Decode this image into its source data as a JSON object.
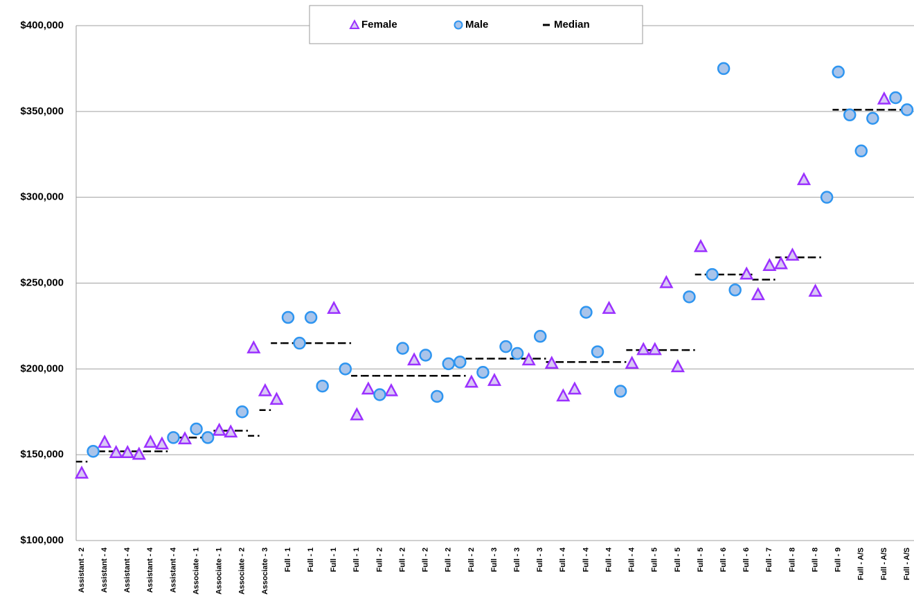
{
  "chart_data": {
    "type": "scatter",
    "categories": [
      "Assistant - 2",
      null,
      "Assistant - 4",
      null,
      "Assistant - 4",
      null,
      "Assistant - 4",
      null,
      "Assistant - 4",
      null,
      "Associate - 1",
      null,
      "Associate - 1",
      null,
      "Associate - 2",
      null,
      "Associate - 3",
      null,
      "Full - 1",
      null,
      "Full - 1",
      null,
      "Full - 1",
      null,
      "Full - 1",
      null,
      "Full - 2",
      null,
      "Full - 2",
      null,
      "Full - 2",
      null,
      "Full - 2",
      null,
      "Full - 2",
      null,
      "Full - 3",
      null,
      "Full - 3",
      null,
      "Full - 3",
      null,
      "Full - 4",
      null,
      "Full - 4",
      null,
      "Full - 4",
      null,
      "Full - 4",
      null,
      "Full - 5",
      null,
      "Full - 5",
      null,
      "Full - 5",
      null,
      "Full - 6",
      null,
      "Full - 6",
      null,
      "Full - 7",
      null,
      "Full - 8",
      null,
      "Full - 8",
      null,
      "Full - 9",
      null,
      "Full - A/S",
      null,
      "Full - A/S",
      null,
      "Full - A/S"
    ],
    "series": [
      {
        "name": "Female",
        "marker": "triangle",
        "color": "#9b30ff",
        "values": [
          139000,
          null,
          157000,
          151000,
          151000,
          150000,
          157000,
          156000,
          null,
          159000,
          null,
          null,
          164000,
          163000,
          null,
          212000,
          187000,
          182000,
          null,
          null,
          null,
          null,
          235000,
          null,
          173000,
          188000,
          null,
          187000,
          null,
          205000,
          null,
          null,
          null,
          null,
          192000,
          null,
          193000,
          null,
          null,
          205000,
          null,
          203000,
          184000,
          188000,
          null,
          null,
          235000,
          null,
          203000,
          211000,
          211000,
          250000,
          201000,
          null,
          271000,
          null,
          null,
          null,
          255000,
          243000,
          260000,
          261000,
          266000,
          310000,
          245000,
          null,
          null,
          null,
          null,
          null,
          357000,
          null,
          null
        ]
      },
      {
        "name": "Male",
        "marker": "circle",
        "color": "#2e95f0",
        "values": [
          null,
          152000,
          null,
          null,
          null,
          null,
          null,
          null,
          160000,
          null,
          165000,
          160000,
          null,
          null,
          175000,
          null,
          null,
          null,
          230000,
          215000,
          230000,
          190000,
          null,
          200000,
          null,
          null,
          185000,
          null,
          212000,
          null,
          208000,
          184000,
          203000,
          204000,
          null,
          198000,
          null,
          213000,
          209000,
          null,
          219000,
          null,
          null,
          null,
          233000,
          210000,
          null,
          187000,
          null,
          null,
          null,
          null,
          null,
          242000,
          null,
          255000,
          375000,
          246000,
          null,
          null,
          null,
          null,
          null,
          null,
          null,
          300000,
          373000,
          348000,
          327000,
          346000,
          null,
          358000,
          351000
        ]
      },
      {
        "name": "Median",
        "marker": "dash",
        "color": "#000000",
        "values": [
          146000,
          152000,
          152000,
          152000,
          152000,
          152000,
          152000,
          152000,
          null,
          160000,
          160000,
          160000,
          164000,
          164000,
          164000,
          161000,
          176000,
          215000,
          215000,
          215000,
          215000,
          215000,
          215000,
          215000,
          196000,
          196000,
          196000,
          196000,
          196000,
          196000,
          196000,
          196000,
          196000,
          196000,
          206000,
          206000,
          206000,
          206000,
          206000,
          206000,
          206000,
          204000,
          204000,
          204000,
          204000,
          204000,
          204000,
          204000,
          211000,
          211000,
          211000,
          211000,
          211000,
          211000,
          255000,
          255000,
          255000,
          255000,
          255000,
          252000,
          252000,
          265000,
          265000,
          265000,
          265000,
          null,
          351000,
          351000,
          351000,
          351000,
          351000,
          351000,
          351000
        ]
      }
    ],
    "ylim": [
      100000,
      400000
    ],
    "yticks": [
      {
        "value": 100000,
        "label": "$100,000"
      },
      {
        "value": 150000,
        "label": "$150,000"
      },
      {
        "value": 200000,
        "label": "$200,000"
      },
      {
        "value": 250000,
        "label": "$250,000"
      },
      {
        "value": 300000,
        "label": "$300,000"
      },
      {
        "value": 350000,
        "label": "$350,000"
      },
      {
        "value": 400000,
        "label": "$400,000"
      }
    ],
    "grid": true,
    "legend": "top"
  }
}
